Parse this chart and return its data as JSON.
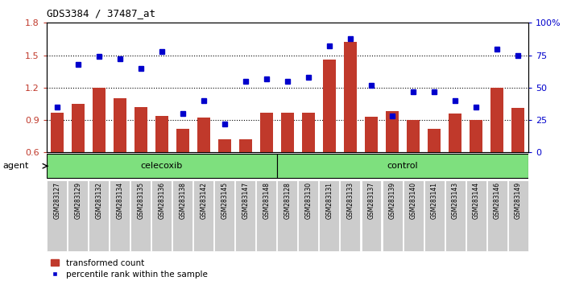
{
  "title": "GDS3384 / 37487_at",
  "categories": [
    "GSM283127",
    "GSM283129",
    "GSM283132",
    "GSM283134",
    "GSM283135",
    "GSM283136",
    "GSM283138",
    "GSM283142",
    "GSM283145",
    "GSM283147",
    "GSM283148",
    "GSM283128",
    "GSM283130",
    "GSM283131",
    "GSM283133",
    "GSM283137",
    "GSM283139",
    "GSM283140",
    "GSM283141",
    "GSM283143",
    "GSM283144",
    "GSM283146",
    "GSM283149"
  ],
  "bar_values": [
    0.97,
    1.05,
    1.2,
    1.1,
    1.02,
    0.94,
    0.82,
    0.92,
    0.72,
    0.72,
    0.97,
    0.97,
    0.97,
    1.46,
    1.62,
    0.93,
    0.98,
    0.9,
    0.82,
    0.96,
    0.9,
    1.2,
    1.01
  ],
  "dot_values": [
    35,
    68,
    74,
    72,
    65,
    78,
    30,
    40,
    22,
    55,
    57,
    55,
    58,
    82,
    88,
    52,
    28,
    47,
    47,
    40,
    35,
    80,
    75
  ],
  "bar_color": "#C0392B",
  "dot_color": "#0000CC",
  "ylim_left": [
    0.6,
    1.8
  ],
  "ylim_right": [
    0,
    100
  ],
  "yticks_left": [
    0.6,
    0.9,
    1.2,
    1.5,
    1.8
  ],
  "yticks_right": [
    0,
    25,
    50,
    75,
    100
  ],
  "ytick_labels_right": [
    "0",
    "25",
    "50",
    "75",
    "100%"
  ],
  "hlines": [
    0.9,
    1.2,
    1.5
  ],
  "celecoxib_count": 11,
  "control_count": 12,
  "agent_label": "agent",
  "celecoxib_label": "celecoxib",
  "control_label": "control",
  "legend_bar_label": "transformed count",
  "legend_dot_label": "percentile rank within the sample",
  "group_bg_color": "#7EE07E",
  "tick_label_bg": "#CCCCCC",
  "background_color": "#ffffff",
  "plot_bg_color": "#ffffff"
}
